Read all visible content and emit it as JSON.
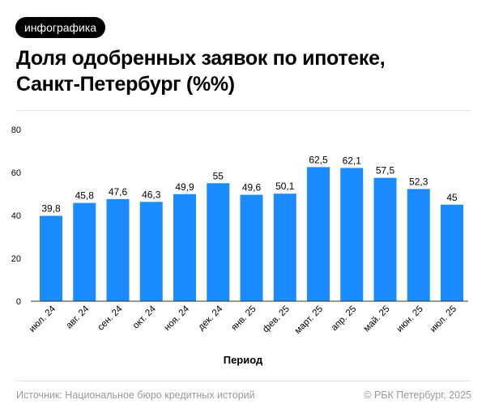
{
  "badge": "инфографика",
  "title_line1": "Доля одобренных заявок по ипотеке,",
  "title_line2": "Санкт-Петербург (%%)",
  "footer": {
    "source": "Источник: Национальное бюро кредитных историй",
    "copyright": "© РБК Петербург, 2025"
  },
  "chart_data": {
    "type": "bar",
    "title": "",
    "xlabel": "Период",
    "ylabel": "",
    "categories": [
      "июл. 24",
      "авг. 24",
      "сен. 24",
      "окт. 24",
      "ноя. 24",
      "дек. 24",
      "янв. 25",
      "фев. 25",
      "март. 25",
      "апр. 25",
      "май. 25",
      "июн. 25",
      "июл. 25"
    ],
    "values": [
      39.8,
      45.8,
      47.6,
      46.3,
      49.9,
      55,
      49.6,
      50.1,
      62.5,
      62.1,
      57.5,
      52.3,
      45
    ],
    "labels": [
      "39,8",
      "45,8",
      "47,6",
      "46,3",
      "49,9",
      "55",
      "49,6",
      "50,1",
      "62,5",
      "62,1",
      "57,5",
      "52,3",
      "45"
    ],
    "ylim": [
      0,
      80
    ],
    "yticks": [
      0,
      20,
      40,
      60,
      80
    ],
    "grid": false,
    "color": "#1a8cff"
  }
}
